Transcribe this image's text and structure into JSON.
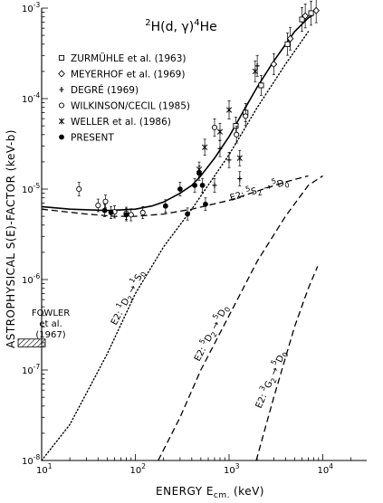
{
  "chart_data": {
    "type": "scatter",
    "title": "²H(d,γ)⁴He",
    "title_parts": [
      "2",
      "H(d, γ)",
      "4",
      "He"
    ],
    "xlabel": "ENERGY E",
    "xlabel_sub": "cm.",
    "xlabel_unit": "(keV)",
    "ylabel": "ASTROPHYSICAL S(E)-FACTOR  (keV-b)",
    "xscale": "log",
    "yscale": "log",
    "xlim": [
      10,
      20000
    ],
    "ylim": [
      1e-08,
      0.001
    ],
    "x_ticks": [
      {
        "value": 10,
        "mantissa": "10",
        "exponent": "1"
      },
      {
        "value": 100,
        "mantissa": "10",
        "exponent": "2"
      },
      {
        "value": 1000,
        "mantissa": "10",
        "exponent": "3"
      },
      {
        "value": 10000,
        "mantissa": "10",
        "exponent": "4"
      }
    ],
    "y_ticks": [
      {
        "value": 1e-08,
        "mantissa": "10",
        "exponent": "-8"
      },
      {
        "value": 1e-07,
        "mantissa": "10",
        "exponent": "-7"
      },
      {
        "value": 1e-06,
        "mantissa": "10",
        "exponent": "-6"
      },
      {
        "value": 1e-05,
        "mantissa": "10",
        "exponent": "-5"
      },
      {
        "value": 0.0001,
        "mantissa": "10",
        "exponent": "-4"
      },
      {
        "value": 0.001,
        "mantissa": "10",
        "exponent": "-3"
      }
    ],
    "legend_position": "top-left",
    "series": [
      {
        "name": "ZURMÜHLE et al. (1963)",
        "marker": "open-square",
        "points": [
          [
            1180,
            5e-05
          ],
          [
            1500,
            7e-05
          ],
          [
            2200,
            0.00014
          ],
          [
            4200,
            0.0004
          ],
          [
            6000,
            0.00075
          ],
          [
            7500,
            0.00088
          ]
        ]
      },
      {
        "name": "MEYERHOF et al. (1969)",
        "marker": "open-diamond",
        "points": [
          [
            3000,
            0.00024
          ],
          [
            4500,
            0.00046
          ],
          [
            6500,
            0.00082
          ],
          [
            8500,
            0.00094
          ]
        ]
      },
      {
        "name": "DEGRÉ (1969)",
        "marker": "tick",
        "points": [
          [
            700,
            1.1e-05
          ],
          [
            800,
            2.8e-05
          ],
          [
            1000,
            2.1e-05
          ],
          [
            1300,
            1.3e-05
          ],
          [
            2000,
            0.00023
          ]
        ]
      },
      {
        "name": "WILKINSON/CECIL (1985)",
        "marker": "open-circle",
        "points": [
          [
            25,
            1e-05
          ],
          [
            40,
            6.6e-06
          ],
          [
            48,
            7.3e-06
          ],
          [
            60,
            5.6e-06
          ],
          [
            80,
            5.4e-06
          ],
          [
            90,
            5.2e-06
          ],
          [
            120,
            5.5e-06
          ],
          [
            700,
            4.8e-05
          ],
          [
            1200,
            4e-05
          ],
          [
            1500,
            6.4e-05
          ]
        ]
      },
      {
        "name": "WELLER et al. (1986)",
        "marker": "star",
        "points": [
          [
            480,
            1.65e-05
          ],
          [
            550,
            2.9e-05
          ],
          [
            800,
            4.3e-05
          ],
          [
            1000,
            7.5e-05
          ],
          [
            1300,
            2.2e-05
          ],
          [
            1900,
            0.0002
          ]
        ]
      },
      {
        "name": "PRESENT",
        "marker": "filled-circle",
        "points": [
          [
            47,
            5.8e-06
          ],
          [
            55,
            5.5e-06
          ],
          [
            80,
            5.2e-06
          ],
          [
            210,
            6.5e-06
          ],
          [
            300,
            1e-05
          ],
          [
            360,
            5.3e-06
          ],
          [
            430,
            1.1e-05
          ],
          [
            480,
            1.5e-05
          ],
          [
            520,
            1.1e-05
          ],
          [
            560,
            6.8e-06
          ]
        ]
      }
    ],
    "curves": [
      {
        "label": "total",
        "style": "solid",
        "points": [
          [
            10,
            6.4e-06
          ],
          [
            20,
            6e-06
          ],
          [
            50,
            5.8e-06
          ],
          [
            100,
            6e-06
          ],
          [
            150,
            6.5e-06
          ],
          [
            200,
            7.2e-06
          ],
          [
            300,
            9e-06
          ],
          [
            400,
            1.1e-05
          ],
          [
            500,
            1.4e-05
          ],
          [
            700,
            2.2e-05
          ],
          [
            1000,
            3.8e-05
          ],
          [
            1500,
            8e-05
          ],
          [
            2000,
            0.000135
          ],
          [
            3000,
            0.00026
          ],
          [
            5000,
            0.00055
          ],
          [
            7000,
            0.00078
          ],
          [
            8000,
            0.00085
          ]
        ]
      },
      {
        "label": "E2: 5S2 → 5D0",
        "style": "dashed",
        "points": [
          [
            10,
            6e-06
          ],
          [
            30,
            5.3e-06
          ],
          [
            60,
            5e-06
          ],
          [
            100,
            5e-06
          ],
          [
            200,
            5.3e-06
          ],
          [
            400,
            6e-06
          ],
          [
            1000,
            7.5e-06
          ],
          [
            2000,
            9.5e-06
          ],
          [
            4000,
            1.2e-05
          ],
          [
            7000,
            1.4e-05
          ]
        ]
      },
      {
        "label": "E2: 1D2 → 1S0",
        "style": "dotted",
        "points": [
          [
            10,
            1e-08
          ],
          [
            20,
            2.5e-08
          ],
          [
            50,
            1.5e-07
          ],
          [
            100,
            7e-07
          ],
          [
            200,
            2.3e-06
          ],
          [
            400,
            6e-06
          ],
          [
            700,
            1.4e-05
          ],
          [
            1000,
            2.4e-05
          ],
          [
            2000,
            8e-05
          ],
          [
            4000,
            0.00024
          ],
          [
            7000,
            0.00055
          ]
        ]
      },
      {
        "label": "E2: 5D2 → 5D0",
        "style": "dashed",
        "points": [
          [
            175,
            1e-08
          ],
          [
            300,
            3e-08
          ],
          [
            500,
            1e-07
          ],
          [
            1000,
            4e-07
          ],
          [
            2000,
            1.6e-06
          ],
          [
            4000,
            5e-06
          ],
          [
            7000,
            1.1e-05
          ],
          [
            10000,
            1.4e-05
          ]
        ]
      },
      {
        "label": "E2: 3G2 → 5D0",
        "style": "dashed",
        "points": [
          [
            1950,
            1e-08
          ],
          [
            3000,
            5e-08
          ],
          [
            5000,
            3e-07
          ],
          [
            7000,
            8e-07
          ],
          [
            8800,
            1.4e-06
          ]
        ]
      }
    ],
    "fowler": {
      "lines": [
        "FOWLER",
        "et al.",
        "(1967)"
      ],
      "value_range": [
        1.8e-07,
        2.2e-07
      ]
    }
  },
  "annotations": {
    "c1": {
      "pre": "E2:",
      "sup1": "5",
      "mid1": "S",
      "sub1": "2",
      "sup2": "5",
      "mid2": "D",
      "sub2": "0"
    },
    "c2": {
      "pre": "E2:",
      "sup1": "1",
      "mid1": "D",
      "sub1": "2",
      "sup2": "1",
      "mid2": "S",
      "sub2": "0"
    },
    "c3": {
      "pre": "E2:",
      "sup1": "5",
      "mid1": "D",
      "sub1": "2",
      "sup2": "5",
      "mid2": "D",
      "sub2": "0"
    },
    "c4": {
      "pre": "E2:",
      "sup1": "3",
      "mid1": "G",
      "sub1": "2",
      "sup2": "5",
      "mid2": "D",
      "sub2": "0"
    }
  }
}
